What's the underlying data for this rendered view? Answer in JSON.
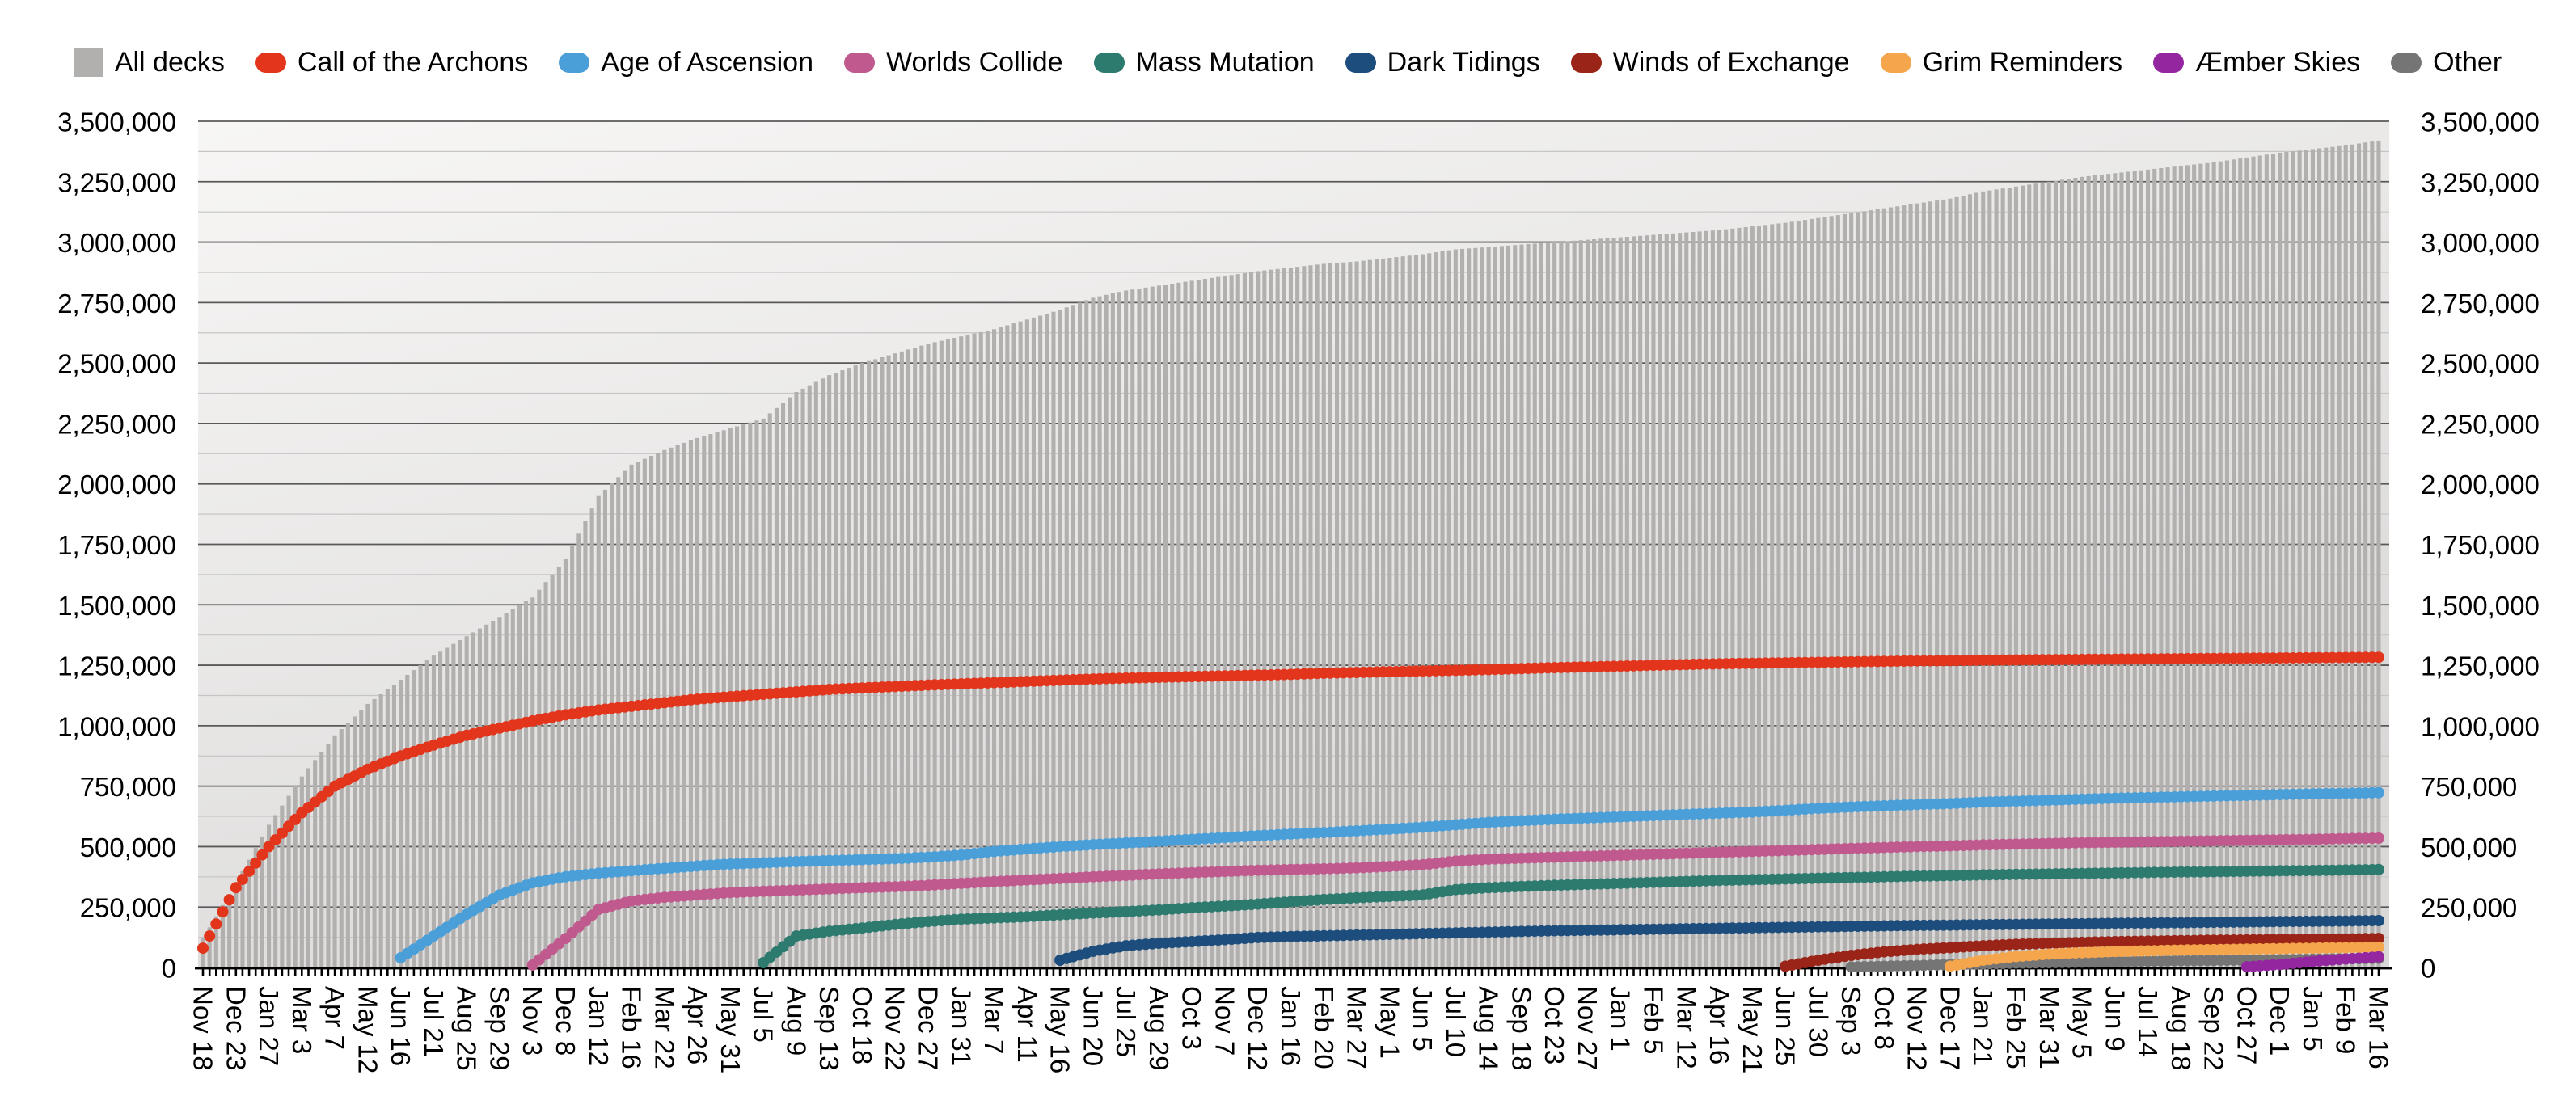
{
  "chart_data": {
    "type": "combo-bar-lines",
    "title": "",
    "legend_position": "top",
    "x_axis": {
      "tick_unit": "week",
      "ticks_per_label": 5,
      "labels": [
        "Nov 18",
        "Dec 23",
        "Jan 27",
        "Mar 3",
        "Apr 7",
        "May 12",
        "Jun 16",
        "Jul 21",
        "Aug 25",
        "Sep 29",
        "Nov 3",
        "Dec 8",
        "Jan 12",
        "Feb 16",
        "Mar 22",
        "Apr 26",
        "May 31",
        "Jul 5",
        "Aug 9",
        "Sep 13",
        "Oct 18",
        "Nov 22",
        "Dec 27",
        "Jan 31",
        "Mar 7",
        "Apr 11",
        "May 16",
        "Jun 20",
        "Jul 25",
        "Aug 29",
        "Oct 3",
        "Nov 7",
        "Dec 12",
        "Jan 16",
        "Feb 20",
        "Mar 27",
        "May 1",
        "Jun 5",
        "Jul 10",
        "Aug 14",
        "Sep 18",
        "Oct 23",
        "Nov 27",
        "Jan 1",
        "Feb 5",
        "Mar 12",
        "Apr 16",
        "May 21",
        "Jun 25",
        "Jul 30",
        "Sep 3",
        "Oct 8",
        "Nov 12",
        "Dec 17",
        "Jan 21",
        "Feb 25",
        "Mar 31",
        "May 5",
        "Jun 9",
        "Jul 14",
        "Aug 18",
        "Sep 22",
        "Oct 27",
        "Dec 1",
        "Jan 5",
        "Feb 9",
        "Mar 16"
      ]
    },
    "y_axis": {
      "min": 0,
      "max": 3500000,
      "major_step": 250000,
      "minor_step": 125000,
      "tick_labels": [
        "0",
        "250,000",
        "500,000",
        "750,000",
        "1,000,000",
        "1,250,000",
        "1,500,000",
        "1,750,000",
        "2,000,000",
        "2,250,000",
        "2,500,000",
        "2,750,000",
        "3,000,000",
        "3,250,000",
        "3,500,000"
      ],
      "shown_on": "both"
    },
    "bars": {
      "id": "all-decks",
      "name": "All decks",
      "color": "#b1b0af",
      "values": [
        120000,
        350000,
        590000,
        790000,
        960000,
        1090000,
        1190000,
        1290000,
        1370000,
        1450000,
        1530000,
        1690000,
        1950000,
        2080000,
        2140000,
        2190000,
        2230000,
        2270000,
        2380000,
        2450000,
        2500000,
        2540000,
        2580000,
        2610000,
        2640000,
        2680000,
        2720000,
        2770000,
        2800000,
        2820000,
        2840000,
        2860000,
        2880000,
        2895000,
        2910000,
        2920000,
        2935000,
        2950000,
        2970000,
        2980000,
        2990000,
        3000000,
        3010000,
        3020000,
        3030000,
        3040000,
        3050000,
        3065000,
        3080000,
        3100000,
        3120000,
        3140000,
        3160000,
        3180000,
        3210000,
        3230000,
        3250000,
        3270000,
        3285000,
        3300000,
        3315000,
        3330000,
        3350000,
        3370000,
        3385000,
        3400000,
        3420000
      ]
    },
    "series": [
      {
        "id": "call-of-the-archons",
        "name": "Call of the Archons",
        "color": "#e2351c",
        "values": [
          80000,
          330000,
          500000,
          640000,
          750000,
          820000,
          875000,
          920000,
          960000,
          990000,
          1020000,
          1045000,
          1065000,
          1080000,
          1095000,
          1110000,
          1120000,
          1130000,
          1140000,
          1150000,
          1156000,
          1162000,
          1168000,
          1173000,
          1178000,
          1183000,
          1188000,
          1193000,
          1197000,
          1200000,
          1203000,
          1206000,
          1209000,
          1212000,
          1217000,
          1220000,
          1223000,
          1226000,
          1229000,
          1232000,
          1236000,
          1240000,
          1243000,
          1246000,
          1250000,
          1253000,
          1256000,
          1258000,
          1260000,
          1262000,
          1264000,
          1266000,
          1268000,
          1269000,
          1271000,
          1272000,
          1273000,
          1274000,
          1275000,
          1276000,
          1277000,
          1278000,
          1279000,
          1280000,
          1281000,
          1282000,
          1283000
        ]
      },
      {
        "id": "age-of-ascension",
        "name": "Age of Ascension",
        "color": "#4a9fd8",
        "values": [
          null,
          null,
          null,
          null,
          null,
          null,
          40000,
          130000,
          220000,
          300000,
          350000,
          375000,
          390000,
          400000,
          410000,
          420000,
          428000,
          433000,
          438000,
          442000,
          446000,
          450000,
          456000,
          465000,
          480000,
          490000,
          500000,
          508000,
          515000,
          522000,
          530000,
          537000,
          545000,
          552000,
          558000,
          565000,
          572000,
          580000,
          590000,
          600000,
          607000,
          613000,
          618000,
          623000,
          628000,
          633000,
          638000,
          643000,
          650000,
          658000,
          664000,
          669000,
          674000,
          678000,
          684000,
          688000,
          692000,
          696000,
          700000,
          703000,
          706000,
          709000,
          712000,
          715000,
          718000,
          720000,
          723000
        ]
      },
      {
        "id": "worlds-collide",
        "name": "Worlds Collide",
        "color": "#c05a8e",
        "values": [
          null,
          null,
          null,
          null,
          null,
          null,
          null,
          null,
          null,
          null,
          10000,
          120000,
          240000,
          275000,
          290000,
          300000,
          310000,
          315000,
          320000,
          325000,
          330000,
          334000,
          340000,
          348000,
          355000,
          362000,
          368000,
          375000,
          381000,
          387000,
          392000,
          397000,
          402000,
          405000,
          408000,
          412000,
          418000,
          425000,
          440000,
          448000,
          452000,
          456000,
          460000,
          464000,
          468000,
          472000,
          476000,
          480000,
          484000,
          488000,
          492000,
          496000,
          500000,
          503000,
          507000,
          510000,
          513000,
          516000,
          518000,
          520000,
          522000,
          524000,
          526000,
          528000,
          530000,
          533000,
          535000
        ]
      },
      {
        "id": "mass-mutation",
        "name": "Mass Mutation",
        "color": "#2d7a6f",
        "values": [
          null,
          null,
          null,
          null,
          null,
          null,
          null,
          null,
          null,
          null,
          null,
          null,
          null,
          null,
          null,
          null,
          null,
          20000,
          130000,
          150000,
          163000,
          178000,
          190000,
          200000,
          205000,
          210000,
          218000,
          225000,
          231000,
          238000,
          247000,
          254000,
          262000,
          272000,
          281000,
          288000,
          294000,
          300000,
          322000,
          330000,
          335000,
          340000,
          344000,
          348000,
          352000,
          356000,
          360000,
          363000,
          366000,
          369000,
          372000,
          375000,
          378000,
          380000,
          383000,
          385000,
          387000,
          389000,
          391000,
          393000,
          395000,
          396000,
          398000,
          400000,
          401000,
          403000,
          405000
        ]
      },
      {
        "id": "dark-tidings",
        "name": "Dark Tidings",
        "color": "#1d4d7c",
        "values": [
          null,
          null,
          null,
          null,
          null,
          null,
          null,
          null,
          null,
          null,
          null,
          null,
          null,
          null,
          null,
          null,
          null,
          null,
          null,
          null,
          null,
          null,
          null,
          null,
          null,
          null,
          30000,
          67000,
          90000,
          100000,
          107000,
          115000,
          124000,
          128000,
          131000,
          134000,
          137000,
          140000,
          143000,
          146000,
          149000,
          152000,
          154000,
          156000,
          158000,
          160000,
          162000,
          164000,
          166000,
          168000,
          170000,
          172000,
          174000,
          175000,
          177000,
          178000,
          180000,
          181000,
          183000,
          184000,
          185000,
          187000,
          188000,
          190000,
          191000,
          192000,
          194000
        ]
      },
      {
        "id": "winds-of-exchange",
        "name": "Winds of Exchange",
        "color": "#9a2418",
        "values": [
          null,
          null,
          null,
          null,
          null,
          null,
          null,
          null,
          null,
          null,
          null,
          null,
          null,
          null,
          null,
          null,
          null,
          null,
          null,
          null,
          null,
          null,
          null,
          null,
          null,
          null,
          null,
          null,
          null,
          null,
          null,
          null,
          null,
          null,
          null,
          null,
          null,
          null,
          null,
          null,
          null,
          null,
          null,
          null,
          null,
          null,
          null,
          null,
          5000,
          30000,
          50000,
          65000,
          75000,
          82000,
          90000,
          96000,
          100000,
          104000,
          107000,
          109000,
          111000,
          113000,
          114000,
          116000,
          117000,
          118000,
          120000
        ]
      },
      {
        "id": "other",
        "name": "Other",
        "color": "#757575",
        "values": [
          null,
          null,
          null,
          null,
          null,
          null,
          null,
          null,
          null,
          null,
          null,
          null,
          null,
          null,
          null,
          null,
          null,
          null,
          null,
          null,
          null,
          null,
          null,
          null,
          null,
          null,
          null,
          null,
          null,
          null,
          null,
          null,
          null,
          null,
          null,
          null,
          null,
          null,
          null,
          null,
          null,
          null,
          null,
          null,
          null,
          null,
          null,
          null,
          null,
          null,
          2000,
          5000,
          8000,
          12000,
          15000,
          18000,
          20000,
          22000,
          24000,
          26000,
          28000,
          29000,
          31000,
          32000,
          34000,
          36000,
          38000
        ]
      },
      {
        "id": "grim-reminders",
        "name": "Grim Reminders",
        "color": "#f5a54b",
        "values": [
          null,
          null,
          null,
          null,
          null,
          null,
          null,
          null,
          null,
          null,
          null,
          null,
          null,
          null,
          null,
          null,
          null,
          null,
          null,
          null,
          null,
          null,
          null,
          null,
          null,
          null,
          null,
          null,
          null,
          null,
          null,
          null,
          null,
          null,
          null,
          null,
          null,
          null,
          null,
          null,
          null,
          null,
          null,
          null,
          null,
          null,
          null,
          null,
          null,
          null,
          null,
          null,
          null,
          5000,
          30000,
          45000,
          55000,
          61000,
          66000,
          69000,
          72000,
          74000,
          76000,
          78000,
          80000,
          82000,
          84000
        ]
      },
      {
        "id": "aember-skies",
        "name": "Æmber Skies",
        "color": "#9426a0",
        "values": [
          null,
          null,
          null,
          null,
          null,
          null,
          null,
          null,
          null,
          null,
          null,
          null,
          null,
          null,
          null,
          null,
          null,
          null,
          null,
          null,
          null,
          null,
          null,
          null,
          null,
          null,
          null,
          null,
          null,
          null,
          null,
          null,
          null,
          null,
          null,
          null,
          null,
          null,
          null,
          null,
          null,
          null,
          null,
          null,
          null,
          null,
          null,
          null,
          null,
          null,
          null,
          null,
          null,
          null,
          null,
          null,
          null,
          null,
          null,
          null,
          null,
          null,
          3000,
          12000,
          25000,
          35000,
          44000
        ]
      }
    ]
  },
  "legend": {
    "order": [
      "all-decks",
      "call-of-the-archons",
      "age-of-ascension",
      "worlds-collide",
      "mass-mutation",
      "dark-tidings",
      "winds-of-exchange",
      "grim-reminders",
      "aember-skies",
      "other"
    ]
  },
  "colors": {
    "plot_bg_top": "#f7f6f5",
    "plot_bg_bottom": "#d9d8d7",
    "major_gridline": "#5a5958",
    "minor_gridline": "#c6c5c4",
    "axis": "#000000",
    "text": "#000000"
  }
}
